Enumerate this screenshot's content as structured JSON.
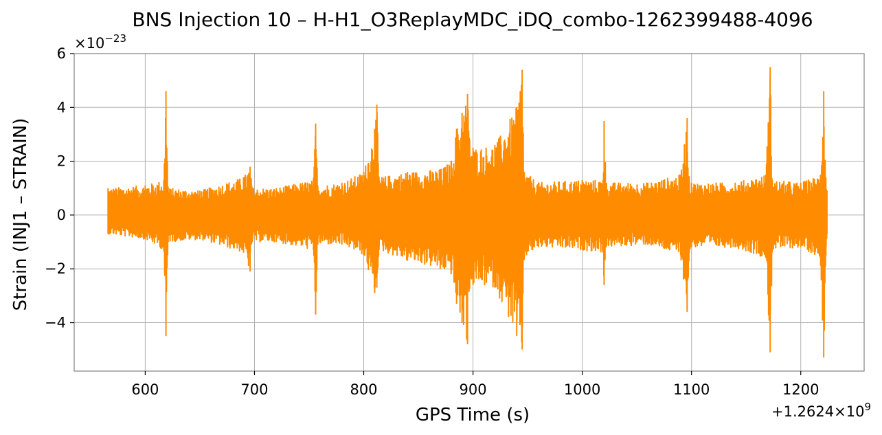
{
  "chart_data": {
    "type": "line",
    "title": "BNS Injection 10 – H-H1_O3ReplayMDC_iDQ_combo-1262399488-4096",
    "xlabel": "GPS Time (s)",
    "ylabel": "Strain (INJ1 – STRAIN)",
    "x_offset_label": "+1.2624×10",
    "x_offset_exponent": "9",
    "y_scale_label": "×10",
    "y_scale_exponent": "−23",
    "xlim": [
      535,
      1258
    ],
    "ylim": [
      -5.8,
      6.0
    ],
    "x_ticks": [
      600,
      700,
      800,
      900,
      1000,
      1100,
      1200
    ],
    "x_tick_labels": [
      "600",
      "700",
      "800",
      "900",
      "1000",
      "1100",
      "1200"
    ],
    "y_ticks": [
      -4,
      -2,
      0,
      2,
      4,
      6
    ],
    "y_tick_labels": [
      "−4",
      "−2",
      "0",
      "2",
      "4",
      "6"
    ],
    "grid": true,
    "series": [
      {
        "color": "#ff8c00",
        "x_range": [
          566,
          1224
        ],
        "envelope": {
          "x": [
            566,
            600,
            617,
            619,
            621,
            650,
            690,
            696,
            698,
            720,
            754,
            756,
            758,
            780,
            800,
            810,
            812,
            814,
            840,
            870,
            880,
            885,
            890,
            895,
            897,
            900,
            920,
            940,
            945,
            947,
            960,
            1000,
            1019,
            1020,
            1022,
            1060,
            1090,
            1096,
            1098,
            1100,
            1140,
            1168,
            1172,
            1174,
            1200,
            1218,
            1221,
            1223,
            1224
          ],
          "upper": [
            1.0,
            1.1,
            1.3,
            4.6,
            1.0,
            0.9,
            1.4,
            1.8,
            1.0,
            1.0,
            1.3,
            3.4,
            1.1,
            1.2,
            1.6,
            3.2,
            4.1,
            1.4,
            1.6,
            1.7,
            2.0,
            3.2,
            3.8,
            4.5,
            2.8,
            2.5,
            2.6,
            4.0,
            5.4,
            1.6,
            1.2,
            1.3,
            1.3,
            3.5,
            1.2,
            1.2,
            1.5,
            3.6,
            1.3,
            1.2,
            1.2,
            1.5,
            5.5,
            1.3,
            1.2,
            1.5,
            4.6,
            1.4,
            0.9
          ],
          "lower": [
            -0.7,
            -0.9,
            -1.3,
            -4.5,
            -1.0,
            -0.9,
            -1.4,
            -2.1,
            -1.0,
            -1.0,
            -1.3,
            -3.7,
            -1.1,
            -1.1,
            -1.5,
            -2.9,
            -2.7,
            -1.3,
            -1.7,
            -2.0,
            -2.2,
            -3.3,
            -4.0,
            -4.8,
            -2.7,
            -2.6,
            -2.7,
            -4.5,
            -5.0,
            -1.6,
            -1.2,
            -1.3,
            -1.4,
            -2.6,
            -1.2,
            -1.1,
            -1.5,
            -3.6,
            -1.4,
            -1.2,
            -1.2,
            -1.6,
            -5.1,
            -1.3,
            -1.2,
            -1.6,
            -5.3,
            -1.5,
            -0.7
          ]
        }
      }
    ]
  }
}
